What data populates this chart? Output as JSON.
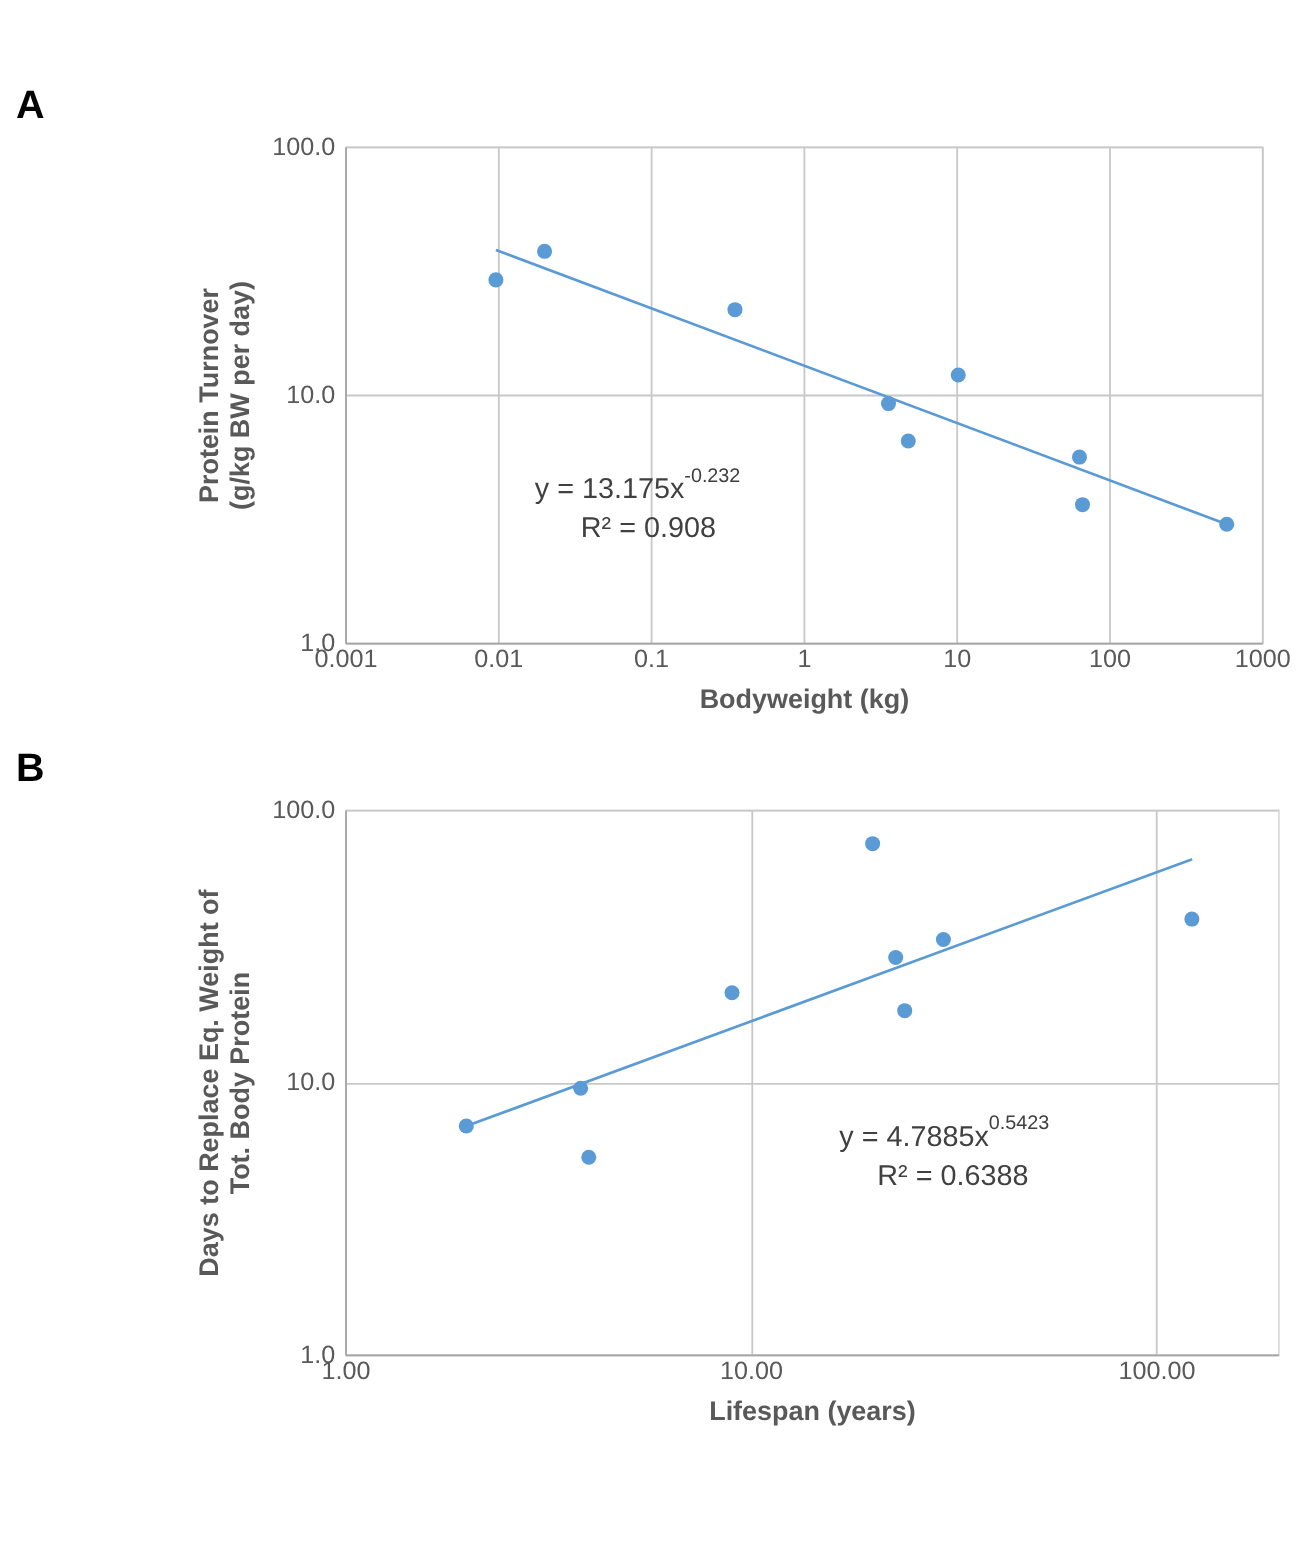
{
  "chart_data": [
    {
      "type": "scatter",
      "title": "A",
      "xlabel": "Bodyweight (kg)",
      "ylabel": "Protein Turnover\n(g/kg BW per day)",
      "log": "xy",
      "grid": true,
      "xlim": [
        0.001,
        1000
      ],
      "xticks": [
        0.001,
        0.01,
        0.1,
        1,
        10,
        100,
        1000
      ],
      "ylim": [
        1,
        100
      ],
      "yticks": [
        {
          "value": 1,
          "label": "1.0"
        },
        {
          "value": 10,
          "label": "10.0"
        },
        {
          "value": 100,
          "label": "100.0"
        }
      ],
      "annotations": [
        "y = 13.175x$^{-0.232}$",
        "R² = 0.908"
      ],
      "series": [
        {
          "marker": "circle",
          "color": "#5b9bd5",
          "x": [
            0.0097,
            0.0202,
            0.356,
            3.6,
            4.85,
            10.3,
            64,
            67,
            589
          ],
          "values": [
            29.0,
            37.8,
            22.0,
            9.2,
            6.5,
            12.0,
            5.6,
            3.6,
            3.0
          ]
        },
        {
          "type": "line",
          "color": "#5b9bd5",
          "x": [
            0.0097,
            589
          ],
          "values": [
            38.3,
            3.0
          ]
        }
      ]
    },
    {
      "type": "scatter",
      "title": "B",
      "xlabel": "Lifespan (years)",
      "ylabel": "Days to Replace Eq. Weight of\nTot. Body Protein",
      "log": "xy",
      "grid": true,
      "xlim": [
        1,
        200
      ],
      "xticks": [
        {
          "value": 1,
          "label": "1.00"
        },
        {
          "value": 10,
          "label": "10.00"
        },
        {
          "value": 100,
          "label": "100.00"
        }
      ],
      "ylim": [
        1,
        100
      ],
      "yticks": [
        {
          "value": 1,
          "label": "1.0"
        },
        {
          "value": 10,
          "label": "10.0"
        },
        {
          "value": 100,
          "label": "100.0"
        }
      ],
      "annotations": [
        "y = 4.7885x$^{0.5423}$",
        "R² = 0.6388"
      ],
      "series": [
        {
          "marker": "circle",
          "color": "#5b9bd5",
          "x": [
            1.99,
            3.81,
            3.99,
            9.0,
            20.0,
            22.8,
            24.0,
            29.9,
            122.6
          ],
          "values": [
            6.9,
            9.5,
            5.3,
            21.3,
            75.1,
            28.7,
            18.3,
            33.4,
            39.7
          ]
        },
        {
          "type": "line",
          "color": "#5b9bd5",
          "x": [
            1.99,
            122.8
          ],
          "values": [
            6.9,
            65.9
          ]
        }
      ]
    }
  ]
}
